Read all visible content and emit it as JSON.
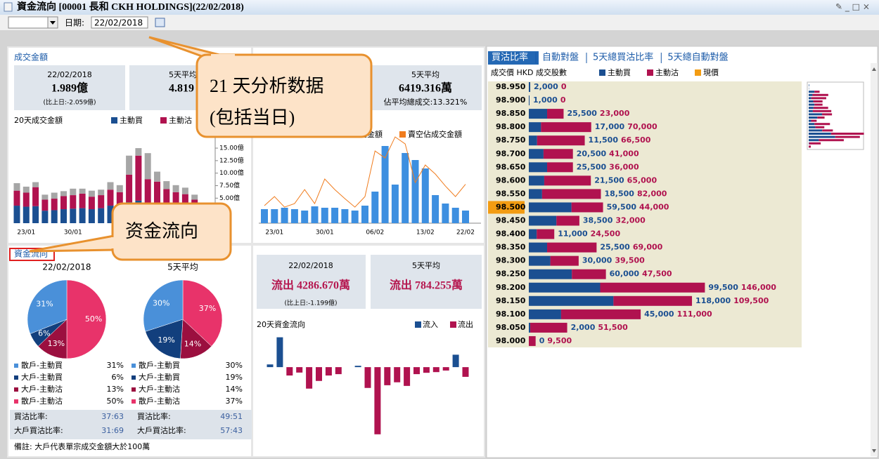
{
  "window": {
    "title": "資金流向 [00001 長和 CKH HOLDINGS](22/02/2018)"
  },
  "toolbar": {
    "date_label": "日期:",
    "date": "22/02/2018"
  },
  "turnover": {
    "heading": "成交金額",
    "today": {
      "date": "22/02/2018",
      "value": "1.989億",
      "change": "(比上日:-2.059億)"
    },
    "avg5": {
      "label": "5天平均",
      "value": "4.819"
    },
    "chart": {
      "type": "bar",
      "title": "20天成交金額",
      "categories": [
        null,
        "23/01",
        null,
        null,
        null,
        null,
        "30/01",
        null,
        null,
        null,
        null,
        null,
        null,
        null,
        null,
        null,
        null,
        null,
        null,
        null,
        null
      ],
      "series": [
        {
          "name": "主動買",
          "color": "#1b4f91",
          "values": [
            3.5,
            3.3,
            3.4,
            2.5,
            2.6,
            2.8,
            2.9,
            3.0,
            2.8,
            3.0,
            3.5,
            3.2,
            4.2,
            4.5,
            4.0,
            3.8,
            3.5,
            3.2,
            3.0,
            2.5,
            0.9
          ]
        },
        {
          "name": "主動沽",
          "color": "#b0124f",
          "values": [
            3.0,
            2.8,
            3.8,
            2.2,
            2.3,
            2.6,
            2.7,
            2.9,
            2.5,
            2.6,
            3.2,
            3.0,
            5.5,
            9.0,
            4.8,
            4.5,
            3.3,
            3.0,
            2.8,
            2.2,
            0.8
          ]
        },
        {
          "color": "#a6a6a6",
          "values": [
            1.5,
            1.2,
            1.0,
            1.0,
            1.2,
            1.0,
            1.3,
            1.0,
            1.2,
            1.1,
            1.5,
            1.4,
            3.8,
            1.5,
            5.2,
            2.0,
            1.6,
            1.4,
            1.3,
            1.0,
            0.3
          ]
        }
      ],
      "ylim": [
        0,
        17.5
      ],
      "yticks": [
        {
          "value": 5,
          "label": "5.00億"
        },
        {
          "value": 7.5,
          "label": "7.50億"
        },
        {
          "value": 10,
          "label": "10.00億"
        },
        {
          "value": 12.5,
          "label": "12.50億"
        },
        {
          "value": 15,
          "label": "15.00億"
        }
      ]
    }
  },
  "short_selling": {
    "avg5": {
      "label": "5天平均",
      "value": "6419.316萬",
      "share": "佔平均總成交:13.321%"
    },
    "chart": {
      "type": "bar",
      "categories": [
        null,
        "23/01",
        null,
        null,
        null,
        null,
        "30/01",
        null,
        null,
        null,
        null,
        "06/02",
        null,
        null,
        null,
        null,
        "13/02",
        null,
        null,
        null,
        "22/02"
      ],
      "series": [
        {
          "name": "沽空金額",
          "color": "#3d8fe0",
          "values": [
            4000,
            4000,
            4400,
            4000,
            3600,
            4800,
            4400,
            4400,
            4000,
            3600,
            5000,
            9000,
            22000,
            11000,
            20000,
            18000,
            15600,
            8000,
            5600,
            4400,
            3600
          ]
        },
        {
          "name": "賣空佔成交金額",
          "color": "#f07c1e",
          "axis": "y2",
          "values": [
            6.0,
            9.1,
            5.5,
            6.7,
            11.5,
            6.7,
            15.1,
            11.5,
            8.4,
            5.5,
            9.1,
            24.7,
            22.3,
            29.5,
            27.1,
            13.9,
            19.9,
            16.8,
            12.7,
            9.1,
            13.3
          ]
        }
      ],
      "ylim": [
        0,
        25000
      ],
      "y2lim": [
        0,
        30
      ]
    }
  },
  "flow": {
    "heading": "資金流向",
    "slice_names": [
      "散戶-主動買",
      "大戶-主動買",
      "大戶-主動沽",
      "散戶-主動沽"
    ],
    "slice_colors": [
      "#4a90d9",
      "#123f7d",
      "#9b0f3f",
      "#e8336a"
    ],
    "pies": [
      {
        "type": "pie",
        "title": "22/02/2018",
        "values": [
          31,
          6,
          13,
          50
        ],
        "value_labels": [
          "31%",
          "6%",
          "13%",
          "50%"
        ]
      },
      {
        "type": "pie",
        "title": "5天平均",
        "values": [
          30,
          19,
          14,
          37
        ],
        "value_labels": [
          "30%",
          "19%",
          "14%",
          "37%"
        ]
      }
    ],
    "ratios": [
      {
        "label": "買沽比率:",
        "values": [
          "37:63",
          "49:51"
        ]
      },
      {
        "label": "大戶買沽比率:",
        "values": [
          "31:69",
          "57:43"
        ]
      }
    ],
    "note": "備註: 大戶代表單宗成交金額大於100萬"
  },
  "net_flow": {
    "today": {
      "date": "22/02/2018",
      "value": "流出 4286.670萬",
      "change": "(比上日:-1.199億)"
    },
    "avg5": {
      "label": "5天平均",
      "value": "流出 784.255萬"
    },
    "chart": {
      "type": "bar",
      "title": "20天資金流向",
      "series": [
        {
          "name": "流入",
          "color": "#1b4f91"
        },
        {
          "name": "流出",
          "color": "#b0124f"
        }
      ],
      "values": [
        1200,
        13200,
        -3700,
        -2400,
        -9500,
        -6100,
        -3700,
        -3100,
        0,
        600,
        -9200,
        -29700,
        -8000,
        -6700,
        -8300,
        -3100,
        -2500,
        -2200,
        -1500,
        5500,
        -4287
      ],
      "ylim": [
        -31000,
        14000
      ]
    }
  },
  "order_book": {
    "tabs": [
      "買沽比率",
      "自動對盤",
      "5天總買沽比率",
      "5天總自動對盤"
    ],
    "header": "成交價 HKD 成交股數",
    "legend": [
      {
        "name": "主動買",
        "color": "#1b4f91"
      },
      {
        "name": "主動沽",
        "color": "#b0124f"
      },
      {
        "name": "現價",
        "color": "#f39c12"
      }
    ],
    "current_price": "98.500",
    "prices": [
      "98.950",
      "98.900",
      "98.850",
      "98.800",
      "98.750",
      "98.700",
      "98.650",
      "98.600",
      "98.550",
      "98.500",
      "98.450",
      "98.400",
      "98.350",
      "98.300",
      "98.250",
      "98.200",
      "98.150",
      "98.100",
      "98.050",
      "98.000"
    ],
    "buy": [
      2000,
      1000,
      25500,
      17000,
      11500,
      20500,
      25500,
      21500,
      18500,
      59500,
      38500,
      11000,
      25500,
      30000,
      60000,
      99500,
      118000,
      45000,
      2000,
      0
    ],
    "buy_labels": [
      "2,000",
      "1,000",
      "25,500",
      "17,000",
      "11,500",
      "20,500",
      "25,500",
      "21,500",
      "18,500",
      "59,500",
      "38,500",
      "11,000",
      "25,500",
      "30,000",
      "60,000",
      "99,500",
      "118,000",
      "45,000",
      "2,000",
      "0"
    ],
    "sell": [
      0,
      0,
      23000,
      70000,
      66500,
      41000,
      36000,
      65000,
      82000,
      44000,
      32000,
      24500,
      69000,
      39500,
      47500,
      146000,
      109500,
      111000,
      51500,
      9500
    ],
    "sell_labels": [
      "0",
      "0",
      "23,000",
      "70,000",
      "66,500",
      "41,000",
      "36,000",
      "65,000",
      "82,000",
      "44,000",
      "32,000",
      "24,500",
      "69,000",
      "39,500",
      "47,500",
      "146,000",
      "109,500",
      "111,000",
      "51,500",
      "9,500"
    ],
    "xlim": [
      0,
      250000
    ]
  },
  "callouts": [
    {
      "lines": [
        "21 天分析数据",
        "(包括当日)"
      ]
    },
    {
      "lines": [
        "资金流向"
      ]
    }
  ]
}
